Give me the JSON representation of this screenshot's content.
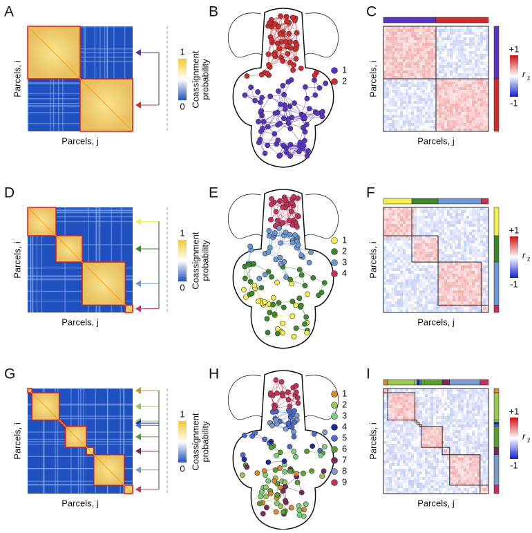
{
  "rows": [
    {
      "matrix": {
        "letter": "A",
        "x_label": "Parcels, j",
        "y_label": "Parcels, i",
        "colorbar_label": [
          "Coassignment",
          "probability"
        ],
        "colorbar_max": "1",
        "colorbar_min": "0"
      },
      "network": {
        "letter": "B",
        "legend": [
          {
            "label": "1",
            "color": "#5a32c8"
          },
          {
            "label": "2",
            "color": "#d62a2a"
          }
        ]
      },
      "correlation": {
        "letter": "C",
        "x_label": "Parcels, j",
        "y_label": "Parcels, i",
        "colorbar_max": "+1",
        "colorbar_min": "-1",
        "colorbar_symbol": "r",
        "colorbar_subscript": "z"
      }
    },
    {
      "matrix": {
        "letter": "D",
        "x_label": "Parcels, j",
        "y_label": "Parcels, i",
        "colorbar_label": [
          "Coassignment",
          "probability"
        ],
        "colorbar_max": "1",
        "colorbar_min": "0"
      },
      "network": {
        "letter": "E",
        "legend": [
          {
            "label": "1",
            "color": "#f2f04a"
          },
          {
            "label": "2",
            "color": "#3a8a2a"
          },
          {
            "label": "3",
            "color": "#6a9ad6"
          },
          {
            "label": "4",
            "color": "#c8305a"
          }
        ]
      },
      "correlation": {
        "letter": "F",
        "x_label": "Parcels, j",
        "y_label": "Parcels, i",
        "colorbar_max": "+1",
        "colorbar_min": "-1",
        "colorbar_symbol": "r",
        "colorbar_subscript": "z"
      }
    },
    {
      "matrix": {
        "letter": "G",
        "x_label": "Parcels, j",
        "y_label": "Parcels, i",
        "colorbar_label": [
          "Coassignment",
          "probability"
        ],
        "colorbar_max": "1",
        "colorbar_min": "0"
      },
      "network": {
        "letter": "H",
        "legend": [
          {
            "label": "1",
            "color": "#d88a2a"
          },
          {
            "label": "2",
            "color": "#9ac850"
          },
          {
            "label": "3",
            "color": "#78d078"
          },
          {
            "label": "4",
            "color": "#1a2aa0"
          },
          {
            "label": "5",
            "color": "#4a6ad6"
          },
          {
            "label": "6",
            "color": "#5aa030"
          },
          {
            "label": "7",
            "color": "#7a2a5a"
          },
          {
            "label": "8",
            "color": "#7a9ad0"
          },
          {
            "label": "9",
            "color": "#c8305a"
          }
        ]
      },
      "correlation": {
        "letter": "I",
        "x_label": "Parcels, j",
        "y_label": "Parcels, i",
        "colorbar_max": "+1",
        "colorbar_min": "-1",
        "colorbar_symbol": "r",
        "colorbar_subscript": "z"
      }
    }
  ]
}
